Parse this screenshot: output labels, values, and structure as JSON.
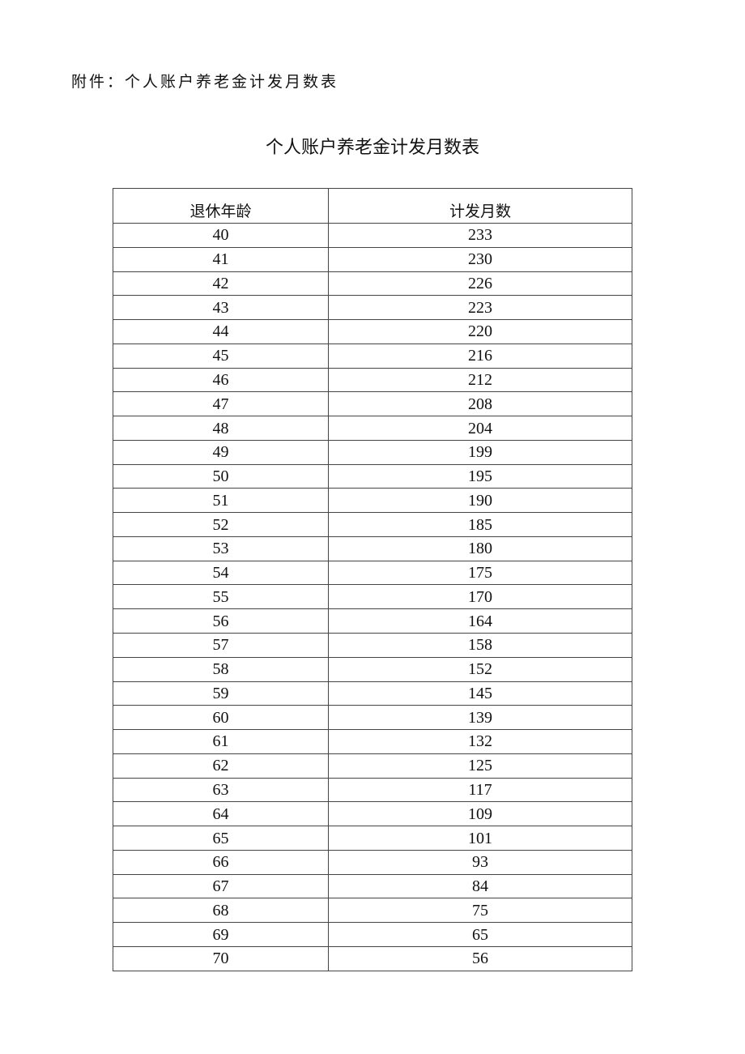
{
  "attachment_label": "附件：个人账户养老金计发月数表",
  "title": "个人账户养老金计发月数表",
  "table": {
    "headers": [
      "退休年龄",
      "计发月数"
    ],
    "rows": [
      [
        "40",
        "233"
      ],
      [
        "41",
        "230"
      ],
      [
        "42",
        "226"
      ],
      [
        "43",
        "223"
      ],
      [
        "44",
        "220"
      ],
      [
        "45",
        "216"
      ],
      [
        "46",
        "212"
      ],
      [
        "47",
        "208"
      ],
      [
        "48",
        "204"
      ],
      [
        "49",
        "199"
      ],
      [
        "50",
        "195"
      ],
      [
        "51",
        "190"
      ],
      [
        "52",
        "185"
      ],
      [
        "53",
        "180"
      ],
      [
        "54",
        "175"
      ],
      [
        "55",
        "170"
      ],
      [
        "56",
        "164"
      ],
      [
        "57",
        "158"
      ],
      [
        "58",
        "152"
      ],
      [
        "59",
        "145"
      ],
      [
        "60",
        "139"
      ],
      [
        "61",
        "132"
      ],
      [
        "62",
        "125"
      ],
      [
        "63",
        "117"
      ],
      [
        "64",
        "109"
      ],
      [
        "65",
        "101"
      ],
      [
        "66",
        "93"
      ],
      [
        "67",
        "84"
      ],
      [
        "68",
        "75"
      ],
      [
        "69",
        "65"
      ],
      [
        "70",
        "56"
      ]
    ]
  }
}
